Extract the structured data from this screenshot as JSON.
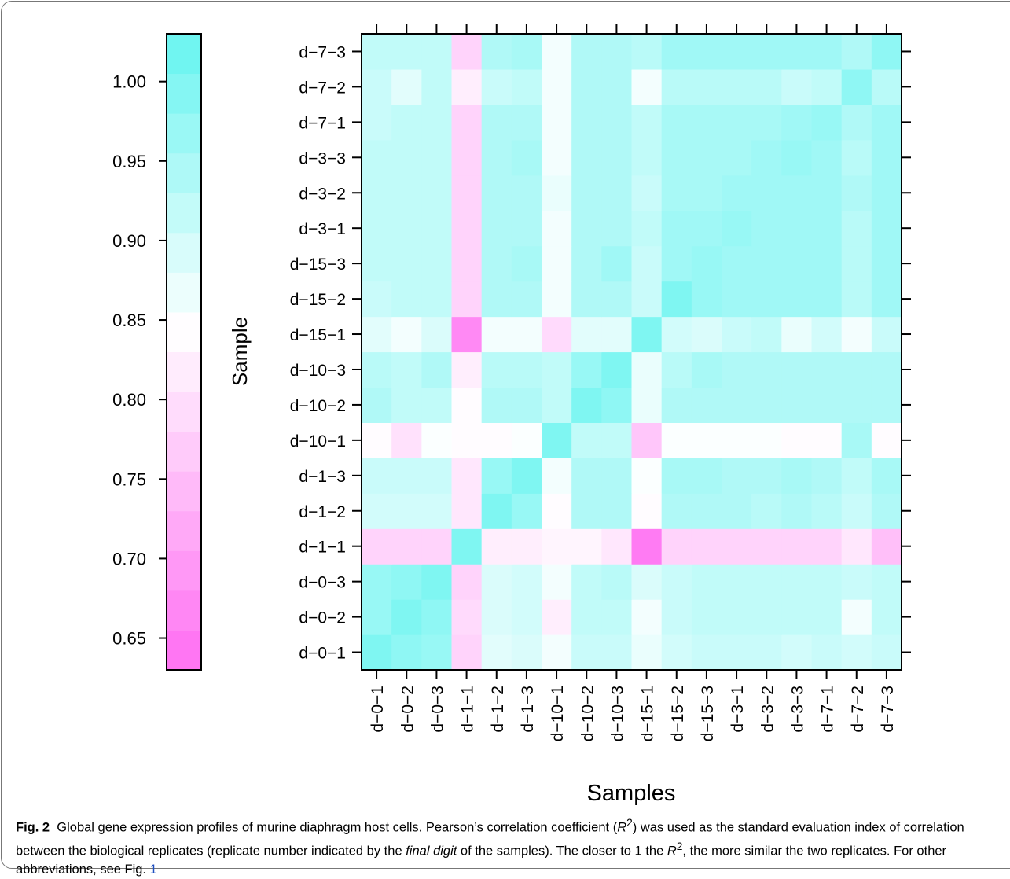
{
  "chart_data": {
    "type": "heatmap",
    "xlabel": "Samples",
    "ylabel": "Sample",
    "samples": [
      "d−0−1",
      "d−0−2",
      "d−0−3",
      "d−1−1",
      "d−1−2",
      "d−1−3",
      "d−10−1",
      "d−10−2",
      "d−10−3",
      "d−15−1",
      "d−15−2",
      "d−15−3",
      "d−3−1",
      "d−3−2",
      "d−3−3",
      "d−7−1",
      "d−7−2",
      "d−7−3"
    ],
    "matrix": [
      [
        1.0,
        0.98,
        0.97,
        0.78,
        0.88,
        0.89,
        0.86,
        0.91,
        0.91,
        0.87,
        0.9,
        0.91,
        0.91,
        0.91,
        0.9,
        0.91,
        0.9,
        0.91
      ],
      [
        0.97,
        1.0,
        0.98,
        0.79,
        0.89,
        0.9,
        0.82,
        0.92,
        0.92,
        0.86,
        0.91,
        0.92,
        0.92,
        0.92,
        0.92,
        0.92,
        0.86,
        0.92
      ],
      [
        0.97,
        0.98,
        1.0,
        0.78,
        0.89,
        0.9,
        0.86,
        0.92,
        0.93,
        0.89,
        0.91,
        0.92,
        0.92,
        0.92,
        0.92,
        0.92,
        0.91,
        0.92
      ],
      [
        0.78,
        0.78,
        0.78,
        1.0,
        0.82,
        0.82,
        0.83,
        0.83,
        0.81,
        0.65,
        0.78,
        0.78,
        0.78,
        0.78,
        0.78,
        0.78,
        0.81,
        0.75
      ],
      [
        0.9,
        0.9,
        0.9,
        0.81,
        1.0,
        0.97,
        0.84,
        0.94,
        0.94,
        0.84,
        0.94,
        0.94,
        0.94,
        0.93,
        0.94,
        0.93,
        0.91,
        0.94
      ],
      [
        0.91,
        0.91,
        0.91,
        0.81,
        0.97,
        1.0,
        0.86,
        0.94,
        0.94,
        0.85,
        0.95,
        0.95,
        0.94,
        0.94,
        0.95,
        0.94,
        0.92,
        0.95
      ],
      [
        0.84,
        0.8,
        0.85,
        0.84,
        0.84,
        0.85,
        1.0,
        0.92,
        0.92,
        0.76,
        0.85,
        0.85,
        0.85,
        0.85,
        0.84,
        0.84,
        0.95,
        0.84
      ],
      [
        0.94,
        0.92,
        0.92,
        0.84,
        0.94,
        0.94,
        0.92,
        1.0,
        0.98,
        0.87,
        0.94,
        0.94,
        0.94,
        0.94,
        0.94,
        0.94,
        0.94,
        0.94
      ],
      [
        0.93,
        0.92,
        0.94,
        0.82,
        0.93,
        0.93,
        0.92,
        0.97,
        1.0,
        0.87,
        0.93,
        0.95,
        0.94,
        0.94,
        0.94,
        0.94,
        0.94,
        0.94
      ],
      [
        0.88,
        0.86,
        0.89,
        0.67,
        0.86,
        0.86,
        0.79,
        0.88,
        0.88,
        1.0,
        0.9,
        0.89,
        0.91,
        0.92,
        0.87,
        0.9,
        0.86,
        0.91
      ],
      [
        0.91,
        0.92,
        0.92,
        0.78,
        0.94,
        0.94,
        0.86,
        0.94,
        0.94,
        0.91,
        1.0,
        0.97,
        0.96,
        0.96,
        0.96,
        0.96,
        0.93,
        0.96
      ],
      [
        0.92,
        0.92,
        0.92,
        0.78,
        0.94,
        0.95,
        0.86,
        0.94,
        0.96,
        0.91,
        0.96,
        0.97,
        0.96,
        0.96,
        0.96,
        0.96,
        0.93,
        0.96
      ],
      [
        0.92,
        0.92,
        0.92,
        0.78,
        0.94,
        0.94,
        0.86,
        0.94,
        0.94,
        0.92,
        0.96,
        0.96,
        0.97,
        0.96,
        0.96,
        0.96,
        0.93,
        0.96
      ],
      [
        0.92,
        0.92,
        0.92,
        0.78,
        0.94,
        0.94,
        0.87,
        0.94,
        0.94,
        0.91,
        0.95,
        0.95,
        0.96,
        0.96,
        0.96,
        0.96,
        0.94,
        0.96
      ],
      [
        0.92,
        0.92,
        0.92,
        0.78,
        0.94,
        0.95,
        0.86,
        0.94,
        0.94,
        0.92,
        0.95,
        0.95,
        0.95,
        0.96,
        0.97,
        0.96,
        0.93,
        0.96
      ],
      [
        0.91,
        0.92,
        0.92,
        0.78,
        0.94,
        0.94,
        0.86,
        0.94,
        0.94,
        0.92,
        0.95,
        0.95,
        0.95,
        0.95,
        0.96,
        0.97,
        0.94,
        0.96
      ],
      [
        0.91,
        0.88,
        0.92,
        0.82,
        0.91,
        0.92,
        0.86,
        0.94,
        0.94,
        0.86,
        0.93,
        0.93,
        0.93,
        0.93,
        0.91,
        0.92,
        0.98,
        0.93
      ],
      [
        0.92,
        0.92,
        0.92,
        0.78,
        0.94,
        0.95,
        0.86,
        0.94,
        0.94,
        0.93,
        0.96,
        0.96,
        0.96,
        0.96,
        0.96,
        0.96,
        0.94,
        0.98
      ]
    ],
    "colorbar": {
      "range": [
        0.63,
        1.03
      ],
      "ticks": [
        "0.65",
        "0.70",
        "0.75",
        "0.80",
        "0.85",
        "0.90",
        "0.95",
        "1.00"
      ],
      "low_color": "#ff6ef2",
      "mid_color": "#ffffff",
      "high_color": "#66f4f0",
      "midpoint": 0.845
    }
  },
  "caption": {
    "label": "Fig. 2",
    "text_1": "Global gene expression profiles of murine diaphragm host cells. Pearson’s correlation coefficient (",
    "r": "R",
    "sup": "2",
    "text_2": ") was used as the standard evaluation index of correlation between the biological replicates (replicate number indicated by the ",
    "italic": "final digit",
    "text_3": " of the samples). The closer to 1 the ",
    "text_4": ", the more similar the two replicates. For other abbreviations, see Fig. ",
    "link": "1"
  }
}
